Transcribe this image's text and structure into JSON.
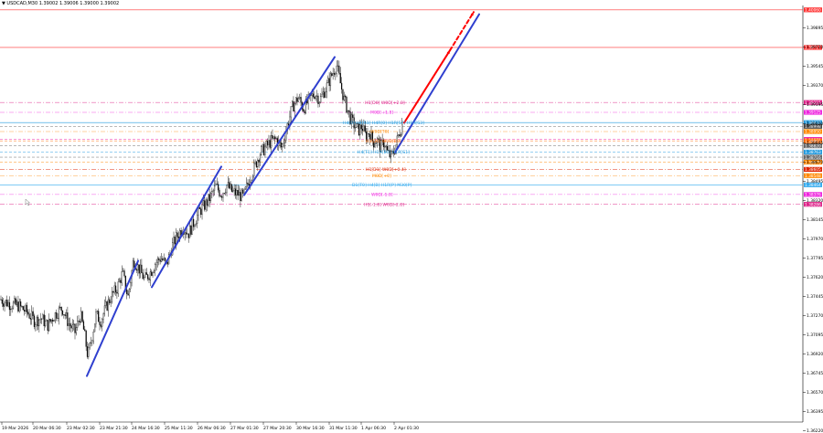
{
  "header": {
    "symbol_line": "▼ USDCAD,M30  1.39002 1.39006 1.39000 1.39002"
  },
  "chart_data": {
    "type": "candlestick",
    "symbol": "USDCAD",
    "timeframe": "M30",
    "ylim": [
      1.363,
      1.401
    ],
    "grid": false,
    "x_ticks": [
      "19 Mar 2026",
      "20 Mar 06:30",
      "23 Mar 02:30",
      "23 Mar 21:30",
      "24 Mar 16:30",
      "25 Mar 11:30",
      "26 Mar 06:30",
      "27 Mar 01:30",
      "27 Mar 20:30",
      "30 Mar 16:30",
      "31 Mar 11:30",
      "1 Apr 06:30",
      "2 Apr 01:30"
    ],
    "y_ticks": [
      1.39895,
      1.3972,
      1.39545,
      1.3937,
      1.39195,
      1.3902,
      1.38845,
      1.3867,
      1.38495,
      1.3832,
      1.38145,
      1.3797,
      1.37795,
      1.3762,
      1.37445,
      1.3727,
      1.37095,
      1.3692,
      1.36745,
      1.3657,
      1.36395,
      1.3622
    ],
    "price_path": [
      [
        0,
        1.3742
      ],
      [
        10,
        1.3738
      ],
      [
        20,
        1.3736
      ],
      [
        30,
        1.373
      ],
      [
        38,
        1.3722
      ],
      [
        45,
        1.3725
      ],
      [
        52,
        1.3718
      ],
      [
        60,
        1.3728
      ],
      [
        68,
        1.3734
      ],
      [
        75,
        1.372
      ],
      [
        82,
        1.3712
      ],
      [
        88,
        1.3728
      ],
      [
        92,
        1.3712
      ],
      [
        96,
        1.369
      ],
      [
        100,
        1.3705
      ],
      [
        105,
        1.3728
      ],
      [
        110,
        1.3722
      ],
      [
        116,
        1.3735
      ],
      [
        122,
        1.3745
      ],
      [
        128,
        1.3752
      ],
      [
        134,
        1.3766
      ],
      [
        140,
        1.3744
      ],
      [
        146,
        1.3778
      ],
      [
        152,
        1.377
      ],
      [
        158,
        1.376
      ],
      [
        164,
        1.3766
      ],
      [
        170,
        1.3775
      ],
      [
        176,
        1.378
      ],
      [
        182,
        1.3773
      ],
      [
        188,
        1.379
      ],
      [
        194,
        1.38
      ],
      [
        200,
        1.3808
      ],
      [
        206,
        1.3802
      ],
      [
        212,
        1.3812
      ],
      [
        218,
        1.3822
      ],
      [
        224,
        1.3828
      ],
      [
        230,
        1.3835
      ],
      [
        236,
        1.3845
      ],
      [
        242,
        1.3838
      ],
      [
        248,
        1.3846
      ],
      [
        254,
        1.384
      ],
      [
        260,
        1.3838
      ],
      [
        266,
        1.3835
      ],
      [
        272,
        1.385
      ],
      [
        278,
        1.3862
      ],
      [
        284,
        1.3875
      ],
      [
        290,
        1.388
      ],
      [
        296,
        1.3886
      ],
      [
        302,
        1.3888
      ],
      [
        308,
        1.388
      ],
      [
        314,
        1.39
      ],
      [
        320,
        1.3918
      ],
      [
        326,
        1.3926
      ],
      [
        332,
        1.3916
      ],
      [
        338,
        1.3924
      ],
      [
        344,
        1.393
      ],
      [
        350,
        1.3924
      ],
      [
        356,
        1.3934
      ],
      [
        362,
        1.3945
      ],
      [
        368,
        1.3956
      ],
      [
        372,
        1.394
      ],
      [
        376,
        1.3925
      ],
      [
        380,
        1.3915
      ],
      [
        384,
        1.3905
      ],
      [
        388,
        1.39
      ],
      [
        392,
        1.3896
      ],
      [
        396,
        1.39
      ],
      [
        400,
        1.389
      ],
      [
        404,
        1.3895
      ],
      [
        408,
        1.3885
      ],
      [
        412,
        1.3888
      ],
      [
        416,
        1.388
      ],
      [
        420,
        1.3886
      ],
      [
        424,
        1.3875
      ],
      [
        428,
        1.3872
      ],
      [
        432,
        1.388
      ],
      [
        436,
        1.3892
      ],
      [
        440,
        1.3902
      ]
    ],
    "trendlines": [
      {
        "name": "blue-1",
        "color": "#2f3fcf",
        "from": [
          95,
          1.3672
        ],
        "to": [
          151,
          1.3777
        ]
      },
      {
        "name": "blue-2",
        "color": "#2f3fcf",
        "from": [
          166,
          1.3753
        ],
        "to": [
          242,
          1.3863
        ]
      },
      {
        "name": "blue-3",
        "color": "#2f3fcf",
        "from": [
          267,
          1.3837
        ],
        "to": [
          366,
          1.3963
        ]
      },
      {
        "name": "blue-4",
        "color": "#2f3fcf",
        "from": [
          432,
          1.3876
        ],
        "to": [
          524,
          1.4002
        ]
      },
      {
        "name": "red-forecast",
        "color": "#ff0000",
        "from": [
          442,
          1.3903
        ],
        "to": [
          492,
          1.3969
        ]
      },
      {
        "name": "red-forecast-dashed",
        "color": "#ff0000",
        "dashed": true,
        "from": [
          492,
          1.3969
        ],
        "to": [
          518,
          1.4004
        ]
      }
    ],
    "levels": [
      {
        "label": "",
        "price": 1.4006,
        "color": "#ff3333",
        "style": "solid",
        "badge": "1.40060"
      },
      {
        "label": "",
        "price": 1.39717,
        "color": "#ff3333",
        "style": "solid",
        "badge": "1.39717"
      },
      {
        "label": "H1[D0] W0D[+2.8]",
        "price": 1.39215,
        "color": "#dd2288",
        "style": "dashdot",
        "badge": "1.39215"
      },
      {
        "label": "M0D[+1.8]",
        "price": 1.39125,
        "color": "#ee22dd",
        "style": "dashdot",
        "badge": "1.39125"
      },
      {
        "label": "H4[0] H4[R1] H4R[0] H1R[S7] H1R[S3]",
        "price": 1.39032,
        "color": "#2299dd",
        "style": "solid",
        "badge": "1.39032"
      },
      {
        "label": "",
        "price": 1.38998,
        "color": "#444444",
        "style": "dashed",
        "badge": "1.38998"
      },
      {
        "label": "W0D[T0]",
        "price": 1.3895,
        "color": "#ff8800",
        "style": "dashdot",
        "badge": "1.38950"
      },
      {
        "label": "",
        "price": 1.38878,
        "color": "#ee22aa",
        "style": "dashed",
        "badge": "1.38878"
      },
      {
        "label": "H1[D0] W0D[B0]",
        "price": 1.38865,
        "color": "#ff6600",
        "style": "dashed",
        "badge": "1.38865"
      },
      {
        "label": "",
        "price": 1.3882,
        "color": "#666666",
        "style": "dashed",
        "badge": "1.38820"
      },
      {
        "label": "H4[T1] H1R[B0] H1R[S1]",
        "price": 1.38763,
        "color": "#2299dd",
        "style": "dashed",
        "badge": "1.38763"
      },
      {
        "label": "",
        "price": 1.38716,
        "color": "#666666",
        "style": "dashed",
        "badge": "1.38716"
      },
      {
        "label": "",
        "price": 1.3867,
        "color": "#ff8800",
        "style": "dashed",
        "badge": "1.38670"
      },
      {
        "label": "H1[D1] W0D[+0.4]",
        "price": 1.38605,
        "color": "#dd2200",
        "style": "dashdot",
        "badge": "1.38605"
      },
      {
        "label": "M0D[+0]",
        "price": 1.38548,
        "color": "#ff8800",
        "style": "dashdot",
        "badge": "1.38548"
      },
      {
        "label": "D1[T0] H4[B] H1R[P] M30[P]",
        "price": 1.38464,
        "color": "#33aaee",
        "style": "solid",
        "badge": "1.38464"
      },
      {
        "label": "W0D[-1.8]",
        "price": 1.38376,
        "color": "#ee22dd",
        "style": "dashdot",
        "badge": "1.38376"
      },
      {
        "label": "H1[-1.8] W0D[-2.8]",
        "price": 1.38286,
        "color": "#dd2288",
        "style": "dashdot",
        "badge": "1.38286"
      }
    ],
    "current_price": 1.39002
  }
}
